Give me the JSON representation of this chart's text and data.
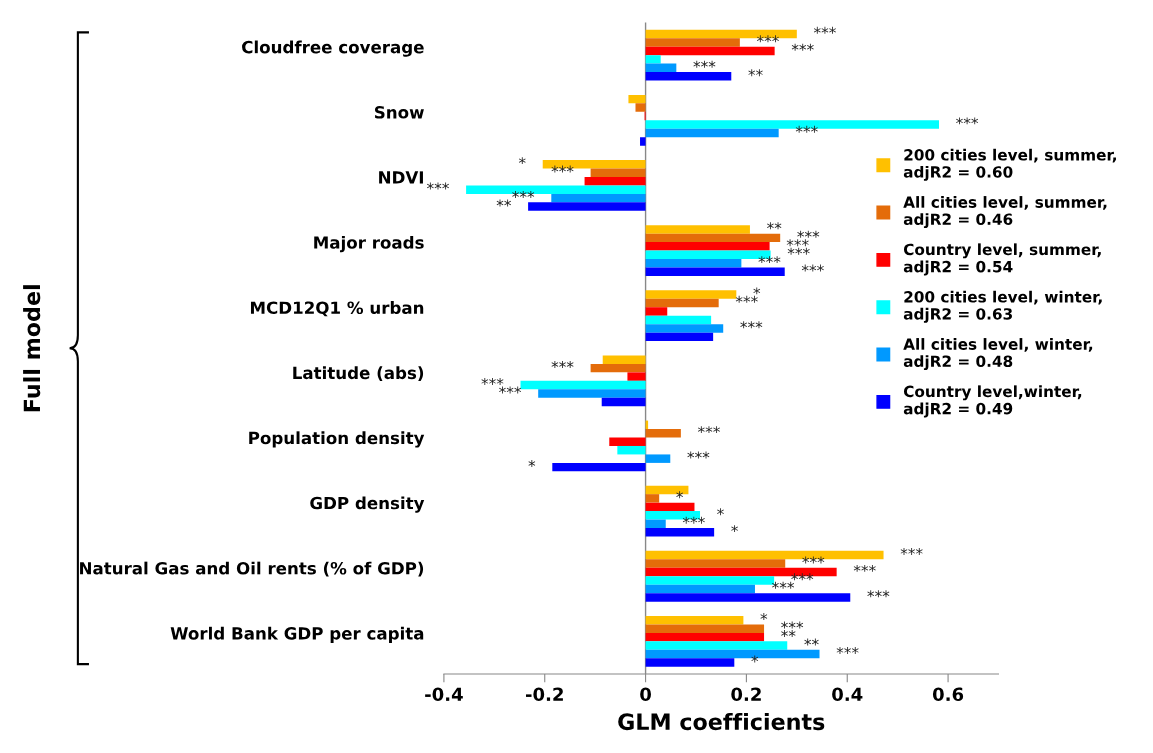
{
  "chart_data": {
    "type": "bar",
    "orientation": "horizontal",
    "xlabel": "GLM coefficients",
    "ylabel": "Full model",
    "categories": [
      "Cloudfree coverage",
      "Snow",
      "NDVI",
      "Major roads",
      "MCD12Q1 % urban",
      "Latitude (abs)",
      "Population density",
      "GDP density",
      "Natural Gas and Oil rents (% of GDP)",
      "World Bank GDP per capita"
    ],
    "series": [
      {
        "name": "200 cities level, summer,\nadjR2 = 0.60",
        "color": "#ffc000",
        "values": [
          0.3,
          -0.034,
          -0.204,
          0.207,
          0.18,
          -0.085,
          0.005,
          0.085,
          0.472,
          0.194
        ],
        "value_labels": [
          "***",
          null,
          "*",
          "**",
          "*",
          null,
          null,
          null,
          "***",
          "*"
        ]
      },
      {
        "name": "All cities level, summer,\nadjR2 = 0.46",
        "color": "#e46c0a",
        "values": [
          0.187,
          -0.02,
          -0.109,
          0.267,
          0.145,
          -0.109,
          0.07,
          0.027,
          0.277,
          0.235
        ],
        "value_labels": [
          "***",
          null,
          "***",
          "***",
          "***",
          "***",
          "***",
          "*",
          "***",
          "***"
        ]
      },
      {
        "name": "Country level, summer,\nadjR2 = 0.54",
        "color": "#ff0000",
        "values": [
          0.256,
          -0.002,
          -0.121,
          0.246,
          0.043,
          -0.036,
          -0.072,
          0.097,
          0.379,
          0.235
        ],
        "value_labels": [
          "***",
          null,
          null,
          "***",
          null,
          null,
          null,
          null,
          "***",
          "**"
        ]
      },
      {
        "name": "200 cities level, winter,\nadjR2 = 0.63",
        "color": "#00ffff",
        "values": [
          0.03,
          0.582,
          -0.356,
          0.248,
          0.13,
          -0.248,
          -0.056,
          0.108,
          0.255,
          0.281
        ],
        "value_labels": [
          null,
          "***",
          "***",
          "***",
          null,
          "***",
          null,
          "*",
          "***",
          "**"
        ]
      },
      {
        "name": "All cities level, winter,\nadjR2 = 0.48",
        "color": "#0099ff",
        "values": [
          0.061,
          0.264,
          -0.187,
          0.19,
          0.154,
          -0.213,
          0.049,
          0.04,
          0.217,
          0.345
        ],
        "value_labels": [
          "***",
          "***",
          "***",
          "***",
          "***",
          "***",
          "***",
          "***",
          "***",
          "***"
        ]
      },
      {
        "name": "Country level,winter,\nadjR2 = 0.49",
        "color": "#0000ff",
        "values": [
          0.17,
          -0.011,
          -0.233,
          0.276,
          0.134,
          -0.087,
          -0.185,
          0.136,
          0.406,
          0.176
        ],
        "value_labels": [
          "**",
          null,
          "**",
          "***",
          null,
          null,
          "*",
          "*",
          "***",
          "*"
        ]
      }
    ],
    "xlim": [
      -0.4,
      0.7
    ],
    "xticks": [
      {
        "value": -0.4,
        "label": "-0.4"
      },
      {
        "value": -0.2,
        "label": "-0.2"
      },
      0,
      0.2,
      0.4,
      0.6
    ],
    "ref_lines": [
      {
        "axis": "x",
        "value": 0,
        "color": "#888888"
      }
    ],
    "grid": false,
    "legend": "right"
  }
}
